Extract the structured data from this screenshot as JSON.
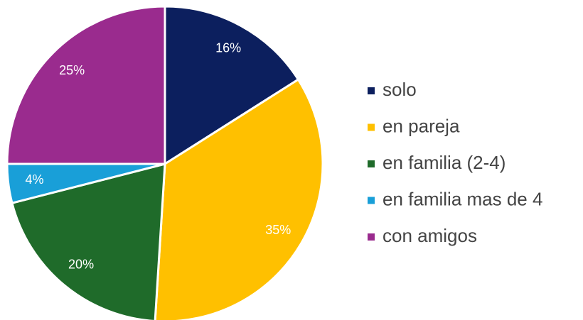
{
  "chart_data": {
    "type": "pie",
    "categories": [
      "solo",
      "en pareja",
      "en familia (2-4)",
      "en familia mas de 4",
      "con amigos"
    ],
    "values": [
      16,
      35,
      20,
      4,
      25
    ],
    "value_labels": [
      "16%",
      "35%",
      "20%",
      "4%",
      "25%"
    ],
    "colors": [
      "#0c1f5e",
      "#ffc000",
      "#1f6b2a",
      "#199fd8",
      "#9a2b8e"
    ],
    "legend": "right"
  }
}
